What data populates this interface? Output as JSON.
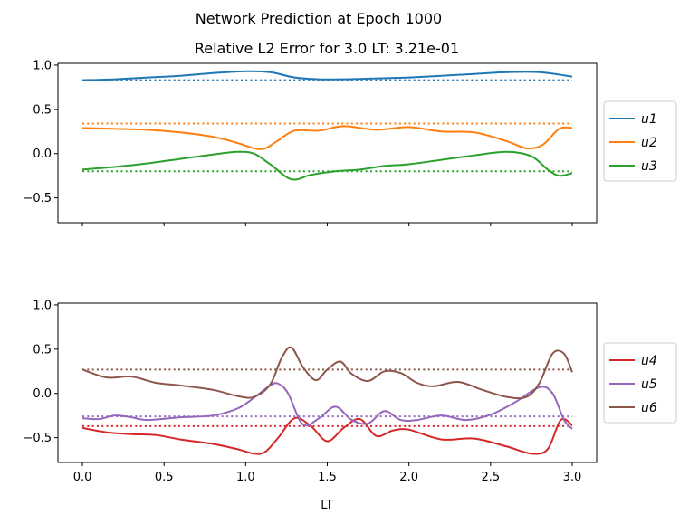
{
  "chart_data": [
    {
      "type": "line",
      "suptitle": "Network Prediction at Epoch 1000",
      "title": "Relative L2 Error for 3.0 LT: 3.21e-01",
      "xlabel": "",
      "ylabel": "",
      "xlim": [
        -0.15,
        3.15
      ],
      "ylim": [
        -0.78,
        1.02
      ],
      "xticks": [
        0.0,
        0.5,
        1.0,
        1.5,
        2.0,
        2.5,
        3.0
      ],
      "xtick_labels_visible": false,
      "yticks": [
        -0.5,
        0.0,
        0.5,
        1.0
      ],
      "ytick_labels": [
        "−0.5",
        "0.0",
        "0.5",
        "1.0"
      ],
      "legend": "outside-right",
      "grid": false,
      "series": [
        {
          "name": "u1",
          "color": "#1f77b4",
          "x": [
            0,
            0.2,
            0.4,
            0.6,
            0.8,
            1.0,
            1.15,
            1.3,
            1.45,
            1.6,
            1.8,
            2.0,
            2.2,
            2.4,
            2.6,
            2.8,
            3.0
          ],
          "y": [
            0.83,
            0.84,
            0.86,
            0.88,
            0.91,
            0.93,
            0.92,
            0.86,
            0.84,
            0.84,
            0.85,
            0.86,
            0.88,
            0.9,
            0.92,
            0.92,
            0.87
          ],
          "reference": 0.83
        },
        {
          "name": "u2",
          "color": "#ff7f0e",
          "x": [
            0,
            0.2,
            0.4,
            0.6,
            0.8,
            0.95,
            1.05,
            1.12,
            1.2,
            1.3,
            1.45,
            1.6,
            1.8,
            2.0,
            2.2,
            2.4,
            2.6,
            2.72,
            2.82,
            2.92,
            3.0
          ],
          "y": [
            0.29,
            0.28,
            0.27,
            0.24,
            0.19,
            0.12,
            0.06,
            0.06,
            0.15,
            0.26,
            0.26,
            0.31,
            0.27,
            0.3,
            0.25,
            0.24,
            0.14,
            0.06,
            0.1,
            0.28,
            0.29
          ],
          "reference": 0.34
        },
        {
          "name": "u3",
          "color": "#2ca02c",
          "x": [
            0,
            0.2,
            0.4,
            0.6,
            0.8,
            0.95,
            1.05,
            1.15,
            1.28,
            1.4,
            1.55,
            1.7,
            1.85,
            2.0,
            2.2,
            2.4,
            2.6,
            2.75,
            2.85,
            2.92,
            3.0
          ],
          "y": [
            -0.18,
            -0.15,
            -0.11,
            -0.06,
            -0.01,
            0.02,
            0.0,
            -0.12,
            -0.29,
            -0.24,
            -0.2,
            -0.18,
            -0.14,
            -0.12,
            -0.07,
            -0.02,
            0.02,
            -0.03,
            -0.18,
            -0.25,
            -0.22
          ],
          "reference": -0.2
        }
      ]
    },
    {
      "type": "line",
      "title": "",
      "xlabel": "LT",
      "ylabel": "",
      "xlim": [
        -0.15,
        3.15
      ],
      "ylim": [
        -0.78,
        1.02
      ],
      "xticks": [
        0.0,
        0.5,
        1.0,
        1.5,
        2.0,
        2.5,
        3.0
      ],
      "xtick_labels": [
        "0.0",
        "0.5",
        "1.0",
        "1.5",
        "2.0",
        "2.5",
        "3.0"
      ],
      "yticks": [
        -0.5,
        0.0,
        0.5,
        1.0
      ],
      "ytick_labels": [
        "−0.5",
        "0.0",
        "0.5",
        "1.0"
      ],
      "legend": "outside-right",
      "grid": false,
      "series": [
        {
          "name": "u4",
          "color": "#d62728",
          "x": [
            0,
            0.15,
            0.3,
            0.45,
            0.6,
            0.8,
            0.95,
            1.05,
            1.12,
            1.2,
            1.3,
            1.4,
            1.5,
            1.6,
            1.7,
            1.8,
            1.9,
            2.0,
            2.2,
            2.4,
            2.6,
            2.75,
            2.85,
            2.93,
            3.0
          ],
          "y": [
            -0.39,
            -0.44,
            -0.46,
            -0.47,
            -0.52,
            -0.57,
            -0.63,
            -0.68,
            -0.66,
            -0.5,
            -0.28,
            -0.37,
            -0.54,
            -0.39,
            -0.29,
            -0.48,
            -0.42,
            -0.41,
            -0.52,
            -0.51,
            -0.6,
            -0.68,
            -0.63,
            -0.3,
            -0.36
          ],
          "reference": -0.37
        },
        {
          "name": "u5",
          "color": "#9467bd",
          "x": [
            0,
            0.1,
            0.2,
            0.3,
            0.4,
            0.6,
            0.8,
            0.95,
            1.05,
            1.15,
            1.2,
            1.26,
            1.35,
            1.45,
            1.55,
            1.65,
            1.75,
            1.85,
            1.95,
            2.05,
            2.2,
            2.35,
            2.5,
            2.65,
            2.8,
            2.88,
            2.95,
            3.0
          ],
          "y": [
            -0.28,
            -0.29,
            -0.25,
            -0.27,
            -0.3,
            -0.27,
            -0.25,
            -0.17,
            -0.05,
            0.09,
            0.11,
            0.0,
            -0.35,
            -0.28,
            -0.15,
            -0.3,
            -0.34,
            -0.2,
            -0.3,
            -0.3,
            -0.25,
            -0.3,
            -0.24,
            -0.1,
            0.07,
            0.0,
            -0.3,
            -0.4
          ],
          "reference": -0.26
        },
        {
          "name": "u6",
          "color": "#8c564b",
          "x": [
            0,
            0.15,
            0.3,
            0.45,
            0.6,
            0.8,
            0.95,
            1.05,
            1.15,
            1.22,
            1.28,
            1.35,
            1.43,
            1.5,
            1.58,
            1.65,
            1.75,
            1.85,
            1.95,
            2.05,
            2.15,
            2.3,
            2.45,
            2.6,
            2.72,
            2.8,
            2.88,
            2.95,
            3.0
          ],
          "y": [
            0.27,
            0.18,
            0.19,
            0.12,
            0.09,
            0.04,
            -0.03,
            -0.04,
            0.1,
            0.4,
            0.52,
            0.3,
            0.15,
            0.27,
            0.36,
            0.22,
            0.14,
            0.25,
            0.23,
            0.12,
            0.08,
            0.13,
            0.04,
            -0.04,
            -0.04,
            0.12,
            0.45,
            0.45,
            0.24
          ],
          "reference": 0.27
        }
      ]
    }
  ]
}
